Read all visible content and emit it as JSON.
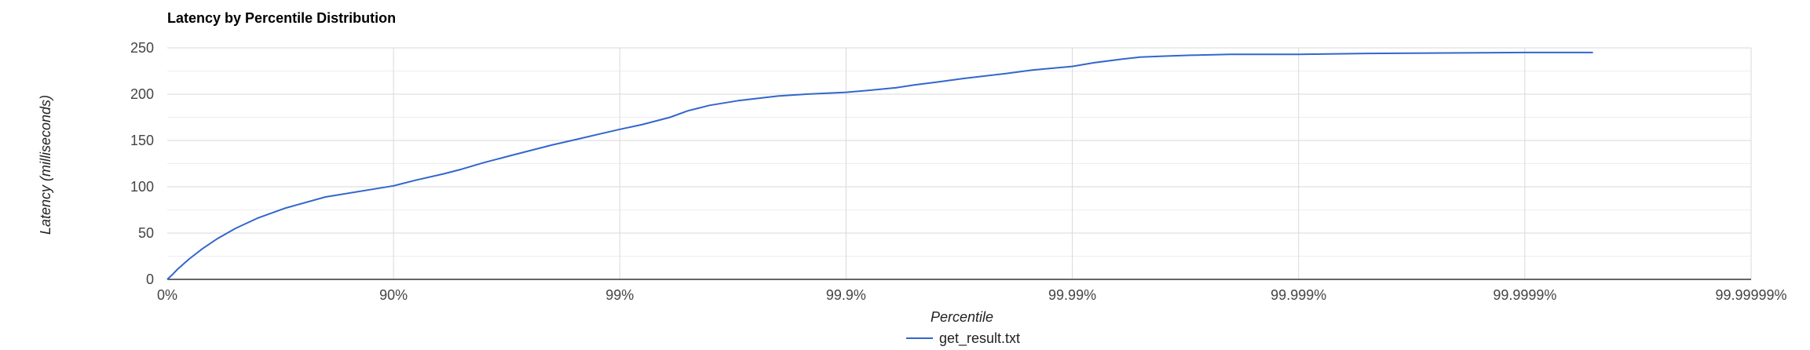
{
  "chart_data": {
    "type": "line",
    "title": "Latency by Percentile Distribution",
    "xlabel": "Percentile",
    "ylabel": "Latency (milliseconds)",
    "x_scale": "log-inverse-percentile",
    "x_ticks": [
      "0%",
      "90%",
      "99%",
      "99.9%",
      "99.99%",
      "99.999%",
      "99.9999%",
      "99.99999%"
    ],
    "y_ticks": [
      0,
      50,
      100,
      150,
      200,
      250
    ],
    "ylim": [
      0,
      250
    ],
    "xlim": [
      "0%",
      "99.99999%"
    ],
    "grid": true,
    "legend": "bottom",
    "colors": {
      "series": "#3366cc",
      "grid": "#d9d9d9",
      "axis": "#333333"
    },
    "series": [
      {
        "name": "get_result.txt",
        "x": [
          0,
          5,
          10,
          20,
          30,
          40,
          50,
          60,
          70,
          80,
          90,
          92,
          94,
          95,
          96,
          97,
          98,
          98.5,
          99,
          99.2,
          99.4,
          99.5,
          99.6,
          99.7,
          99.8,
          99.85,
          99.9,
          99.92,
          99.94,
          99.95,
          99.96,
          99.97,
          99.98,
          99.985,
          99.99,
          99.992,
          99.994,
          99.995,
          99.996,
          99.997,
          99.998,
          99.999,
          99.9995,
          99.9999,
          99.99995
        ],
        "y": [
          0,
          5,
          11,
          22,
          33,
          44,
          55,
          66,
          77,
          89,
          101,
          107,
          114,
          119,
          126,
          134,
          145,
          152,
          162,
          167,
          175,
          182,
          188,
          193,
          198,
          200,
          202,
          204,
          207,
          210,
          213,
          217,
          222,
          226,
          230,
          234,
          238,
          240,
          241,
          242,
          243,
          243,
          244,
          245,
          245
        ]
      }
    ]
  }
}
